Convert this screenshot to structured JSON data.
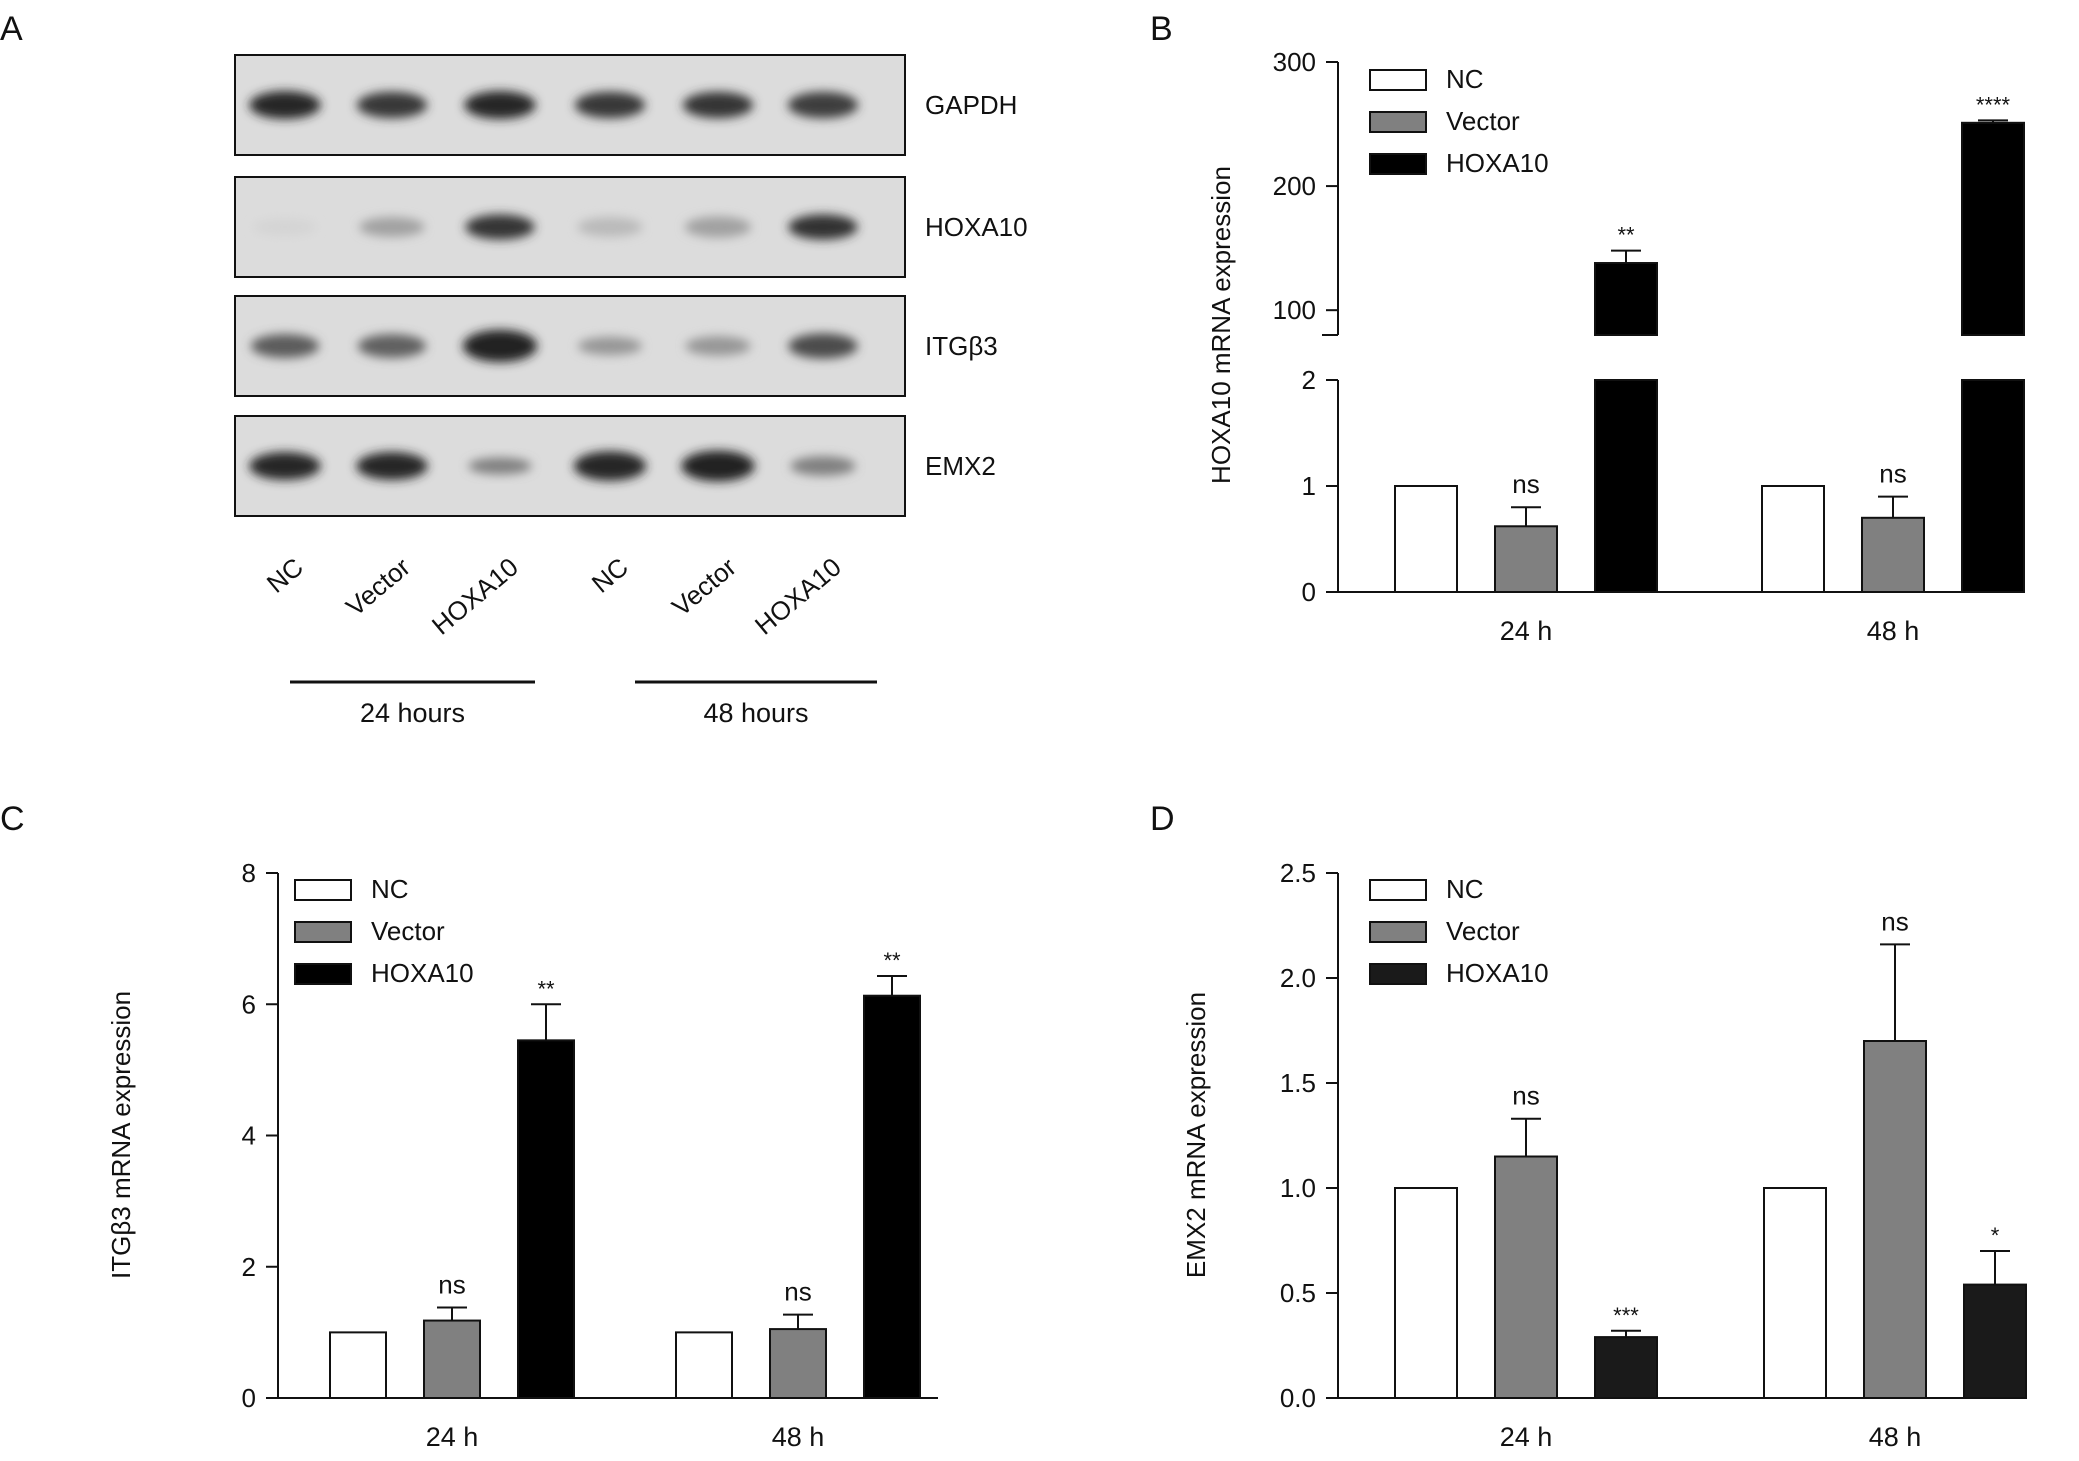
{
  "panel_letters": [
    "A",
    "B",
    "C",
    "D"
  ],
  "blot": {
    "proteins": [
      {
        "name": "GAPDH",
        "intensity": [
          0.86,
          0.78,
          0.86,
          0.78,
          0.8,
          0.76
        ],
        "thickness": [
          1.0,
          0.95,
          1.0,
          0.95,
          0.95,
          0.95
        ]
      },
      {
        "name": "HOXA10",
        "intensity": [
          0.06,
          0.3,
          0.8,
          0.18,
          0.3,
          0.82
        ],
        "thickness": [
          0.6,
          0.7,
          0.9,
          0.7,
          0.75,
          0.9
        ]
      },
      {
        "name": "ITGβ3",
        "intensity": [
          0.62,
          0.6,
          0.88,
          0.35,
          0.35,
          0.7
        ],
        "thickness": [
          0.85,
          0.85,
          1.15,
          0.65,
          0.7,
          0.9
        ]
      },
      {
        "name": "EMX2",
        "intensity": [
          0.86,
          0.86,
          0.45,
          0.86,
          0.9,
          0.45
        ],
        "thickness": [
          1.0,
          1.0,
          0.6,
          1.05,
          1.1,
          0.7
        ]
      }
    ],
    "lanes": [
      "NC",
      "Vector",
      "HOXA10",
      "NC",
      "Vector",
      "HOXA10"
    ],
    "groups": [
      "24 hours",
      "48 hours"
    ]
  },
  "chart_data": [
    {
      "panel": "B",
      "type": "bar",
      "ylabel": "HOXA10 mRNA expression",
      "categories": [
        "24 h",
        "48 h"
      ],
      "y_axis": "broken",
      "lower_ylim": [
        0,
        2
      ],
      "lower_ticks": [
        0,
        1,
        2
      ],
      "upper_ylim": [
        80,
        300
      ],
      "upper_ticks": [
        100,
        200,
        300
      ],
      "legend": "top-left",
      "series": [
        {
          "name": "NC",
          "values": [
            1.0,
            1.0
          ],
          "errors": [
            0,
            0
          ],
          "color": "#ffffff",
          "sig": [
            "",
            ""
          ]
        },
        {
          "name": "Vector",
          "values": [
            0.62,
            0.7
          ],
          "errors": [
            0.18,
            0.2
          ],
          "color": "#808080",
          "sig": [
            "ns",
            "ns"
          ]
        },
        {
          "name": "HOXA10",
          "values": [
            138,
            251
          ],
          "errors": [
            10,
            2
          ],
          "color": "#000000",
          "sig": [
            "**",
            "****"
          ]
        }
      ]
    },
    {
      "panel": "C",
      "type": "bar",
      "ylabel": "ITGβ3 mRNA expression",
      "categories": [
        "24 h",
        "48 h"
      ],
      "ylim": [
        0,
        8
      ],
      "yticks": [
        0,
        2,
        4,
        6,
        8
      ],
      "legend": "top-left",
      "series": [
        {
          "name": "NC",
          "values": [
            1.0,
            1.0
          ],
          "errors": [
            0,
            0
          ],
          "color": "#ffffff",
          "sig": [
            "",
            ""
          ]
        },
        {
          "name": "Vector",
          "values": [
            1.18,
            1.05
          ],
          "errors": [
            0.2,
            0.22
          ],
          "color": "#808080",
          "sig": [
            "ns",
            "ns"
          ]
        },
        {
          "name": "HOXA10",
          "values": [
            5.45,
            6.13
          ],
          "errors": [
            0.55,
            0.3
          ],
          "color": "#000000",
          "sig": [
            "**",
            "**"
          ]
        }
      ]
    },
    {
      "panel": "D",
      "type": "bar",
      "ylabel": "EMX2 mRNA expression",
      "categories": [
        "24 h",
        "48 h"
      ],
      "ylim": [
        0,
        2.5
      ],
      "yticks": [
        0,
        0.5,
        1.0,
        1.5,
        2.0,
        2.5
      ],
      "ytick_labels": [
        "0.0",
        "0.5",
        "1.0",
        "1.5",
        "2.0",
        "2.5"
      ],
      "legend": "top-left",
      "series": [
        {
          "name": "NC",
          "values": [
            1.0,
            1.0
          ],
          "errors": [
            0,
            0
          ],
          "color": "#ffffff",
          "sig": [
            "",
            ""
          ]
        },
        {
          "name": "Vector",
          "values": [
            1.15,
            1.7
          ],
          "errors": [
            0.18,
            0.46
          ],
          "color": "#808080",
          "sig": [
            "ns",
            "ns"
          ]
        },
        {
          "name": "HOXA10",
          "values": [
            0.29,
            0.54
          ],
          "errors": [
            0.03,
            0.16
          ],
          "color": "#1a1a1a",
          "sig": [
            "***",
            "*"
          ]
        }
      ]
    }
  ]
}
